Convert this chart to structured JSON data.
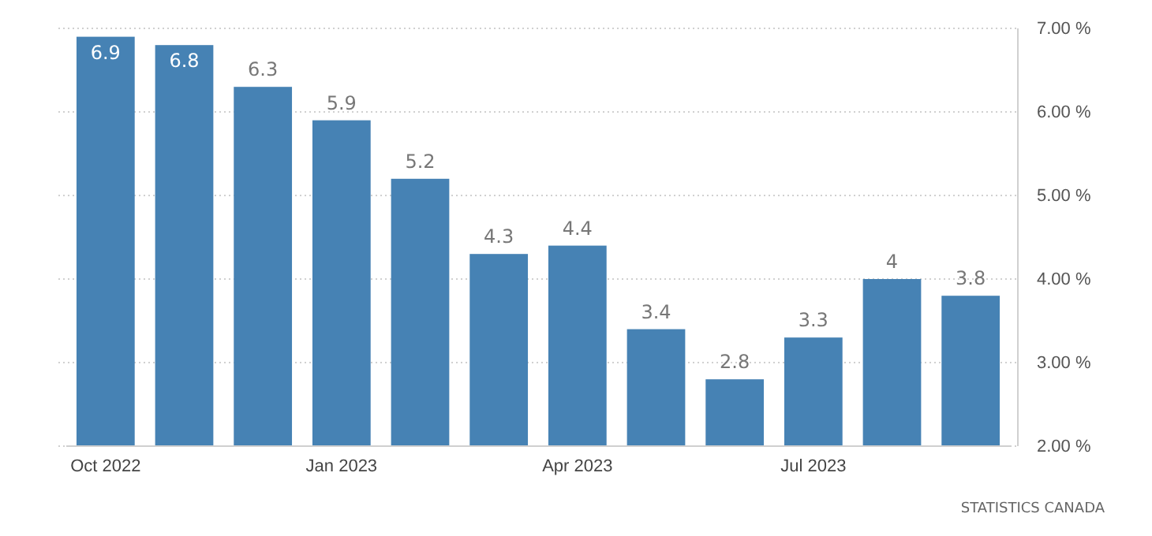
{
  "chart_data": {
    "type": "bar",
    "categories": [
      "Oct 2022",
      null,
      null,
      "Jan 2023",
      null,
      null,
      "Apr 2023",
      null,
      null,
      "Jul 2023",
      null,
      null
    ],
    "values": [
      6.9,
      6.8,
      6.3,
      5.9,
      5.2,
      4.3,
      4.4,
      3.4,
      2.8,
      3.3,
      4,
      3.8
    ],
    "color": "#4682b4",
    "ylim": [
      2,
      7
    ],
    "yticks": [
      {
        "value": 2,
        "label": "2.00 %"
      },
      {
        "value": 3,
        "label": "3.00 %"
      },
      {
        "value": 4,
        "label": "4.00 %"
      },
      {
        "value": 5,
        "label": "5.00 %"
      },
      {
        "value": 6,
        "label": "6.00 %"
      },
      {
        "value": 7,
        "label": "7.00 %"
      }
    ],
    "grid": "y",
    "data_labels": true,
    "annotations": [
      "STATISTICS CANADA"
    ]
  }
}
